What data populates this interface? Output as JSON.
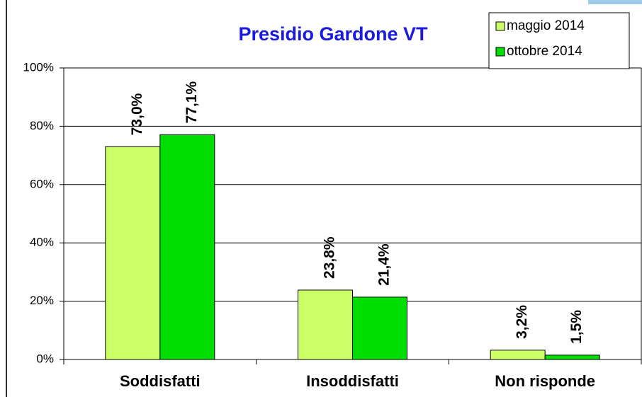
{
  "chart_data": {
    "type": "bar",
    "title": "Presidio Gardone VT",
    "categories": [
      "Soddisfatti",
      "Insoddisfatti",
      "Non risponde"
    ],
    "series": [
      {
        "name": "maggio 2014",
        "color": "#ccff66",
        "values": [
          73.0,
          23.8,
          3.2
        ],
        "value_labels": [
          "73,0%",
          "23,8%",
          "3,2%"
        ]
      },
      {
        "name": "ottobre 2014",
        "color": "#00dd00",
        "values": [
          77.1,
          21.4,
          1.5
        ],
        "value_labels": [
          "77,1%",
          "21,4%",
          "1,5%"
        ]
      }
    ],
    "ylim": [
      0,
      100
    ],
    "yticks": [
      {
        "value": 0,
        "label": "0%"
      },
      {
        "value": 20,
        "label": "20%"
      },
      {
        "value": 40,
        "label": "40%"
      },
      {
        "value": 60,
        "label": "60%"
      },
      {
        "value": 80,
        "label": "80%"
      },
      {
        "value": 100,
        "label": "100%"
      }
    ],
    "grid": true,
    "legend": "top-right"
  }
}
